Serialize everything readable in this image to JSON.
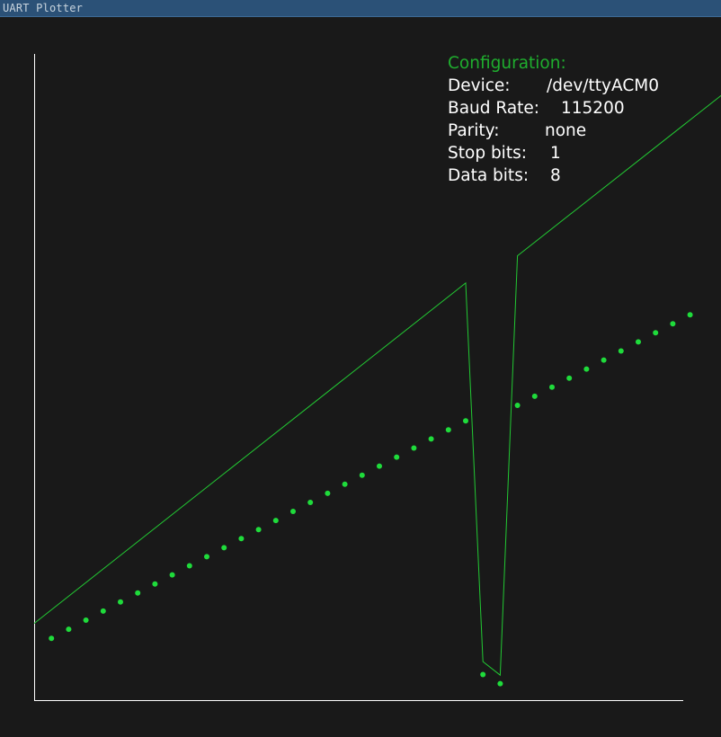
{
  "window": {
    "title": "UART Plotter"
  },
  "config": {
    "heading": "Configuration:",
    "rows": [
      {
        "key": "Device:",
        "value": "/dev/ttyACM0"
      },
      {
        "key": "Baud Rate:",
        "value": "115200"
      },
      {
        "key": "Parity:",
        "value": "none"
      },
      {
        "key": "Stop bits:",
        "value": "1"
      },
      {
        "key": "Data bits:",
        "value": "8"
      }
    ]
  },
  "colors": {
    "background": "#191919",
    "axis": "#ffffff",
    "line_series": "#22c933",
    "dot_series": "#1fdb3b",
    "heading": "#1fae2e",
    "text": "#ffffff"
  },
  "chart_data": {
    "type": "line",
    "xlim": [
      0,
      38
    ],
    "ylim": [
      0,
      100
    ],
    "grid": false,
    "legend": "none",
    "series": [
      {
        "style": "line",
        "x": [
          0,
          25,
          26,
          27,
          28,
          40
        ],
        "y": [
          12,
          64.6,
          6.1,
          4,
          68.8,
          94
        ]
      },
      {
        "style": "dots",
        "x": [
          1,
          2,
          3,
          4,
          5,
          6,
          7,
          8,
          9,
          10,
          11,
          12,
          13,
          14,
          15,
          16,
          17,
          18,
          19,
          20,
          21,
          22,
          23,
          24,
          25,
          26,
          27,
          28,
          29,
          30,
          31,
          32,
          33,
          34,
          35,
          36,
          37,
          38
        ],
        "y": [
          9.7,
          11.1,
          12.5,
          13.9,
          15.3,
          16.7,
          18.1,
          19.5,
          20.9,
          22.3,
          23.7,
          25.1,
          26.5,
          27.9,
          29.3,
          30.7,
          32.1,
          33.5,
          34.9,
          36.3,
          37.7,
          39.1,
          40.5,
          41.9,
          43.3,
          4.1,
          2.7,
          45.7,
          47.1,
          48.5,
          49.9,
          51.3,
          52.7,
          54.1,
          55.5,
          56.9,
          58.3,
          59.7
        ]
      }
    ]
  }
}
